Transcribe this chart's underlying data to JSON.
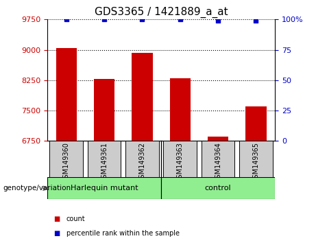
{
  "title": "GDS3365 / 1421889_a_at",
  "categories": [
    "GSM149360",
    "GSM149361",
    "GSM149362",
    "GSM149363",
    "GSM149364",
    "GSM149365"
  ],
  "bar_values": [
    9050,
    8280,
    8930,
    8290,
    6850,
    7600
  ],
  "percentile_values": [
    100,
    100,
    100,
    100,
    99,
    99
  ],
  "bar_color": "#cc0000",
  "percentile_color": "#0000cc",
  "ylim_left": [
    6750,
    9750
  ],
  "yticks_left": [
    6750,
    7500,
    8250,
    9000,
    9750
  ],
  "ylim_right": [
    0,
    100
  ],
  "yticks_right": [
    0,
    25,
    50,
    75,
    100
  ],
  "ytick_labels_right": [
    "0",
    "25",
    "50",
    "75",
    "100%"
  ],
  "group1_label": "Harlequin mutant",
  "group2_label": "control",
  "genotype_label": "genotype/variation",
  "legend_count_label": "count",
  "legend_percentile_label": "percentile rank within the sample",
  "group_color": "#90EE90",
  "gray_box_color": "#cccccc",
  "title_fontsize": 11,
  "tick_fontsize": 8,
  "label_fontsize": 7,
  "bar_width": 0.55
}
